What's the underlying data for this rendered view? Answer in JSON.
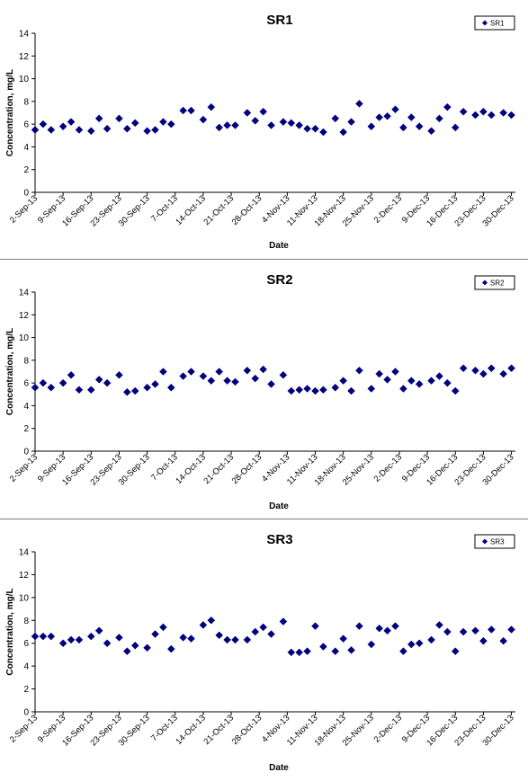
{
  "chart_data": [
    {
      "type": "scatter",
      "title": "SR1",
      "xlabel": "Date",
      "ylabel": "Concentration, mg/L",
      "ylim": [
        0,
        14
      ],
      "yticks": [
        "0",
        "2",
        "4",
        "6",
        "8",
        "10",
        "12",
        "14"
      ],
      "xticks": [
        "2-Sep-13",
        "9-Sep-13",
        "16-Sep-13",
        "23-Sep-13",
        "30-Sep-13",
        "7-Oct-13",
        "14-Oct-13",
        "21-Oct-13",
        "28-Oct-13",
        "4-Nov-13",
        "11-Nov-13",
        "18-Nov-13",
        "25-Nov-13",
        "2-Dec-13",
        "9-Dec-13",
        "16-Dec-13",
        "23-Dec-13",
        "30-Dec-13"
      ],
      "xlim": [
        "2013-09-02",
        "2013-12-31"
      ],
      "legend": "top-right",
      "grid": false,
      "color": "#00007f",
      "series": [
        {
          "name": "SR1",
          "x": [
            "2013-09-02",
            "2013-09-04",
            "2013-09-06",
            "2013-09-09",
            "2013-09-11",
            "2013-09-13",
            "2013-09-16",
            "2013-09-18",
            "2013-09-20",
            "2013-09-23",
            "2013-09-25",
            "2013-09-27",
            "2013-09-30",
            "2013-10-02",
            "2013-10-04",
            "2013-10-06",
            "2013-10-09",
            "2013-10-11",
            "2013-10-14",
            "2013-10-16",
            "2013-10-18",
            "2013-10-20",
            "2013-10-22",
            "2013-10-25",
            "2013-10-27",
            "2013-10-29",
            "2013-10-31",
            "2013-11-03",
            "2013-11-05",
            "2013-11-07",
            "2013-11-09",
            "2013-11-11",
            "2013-11-13",
            "2013-11-16",
            "2013-11-18",
            "2013-11-20",
            "2013-11-22",
            "2013-11-25",
            "2013-11-27",
            "2013-11-29",
            "2013-12-01",
            "2013-12-03",
            "2013-12-05",
            "2013-12-07",
            "2013-12-10",
            "2013-12-12",
            "2013-12-14",
            "2013-12-16",
            "2013-12-18",
            "2013-12-21",
            "2013-12-23",
            "2013-12-25",
            "2013-12-28",
            "2013-12-30"
          ],
          "y": [
            5.5,
            6.0,
            5.5,
            5.8,
            6.2,
            5.5,
            5.4,
            6.5,
            5.6,
            6.5,
            5.6,
            6.1,
            5.4,
            5.5,
            6.2,
            6.0,
            7.2,
            7.2,
            6.4,
            7.5,
            5.7,
            5.9,
            5.9,
            7.0,
            6.3,
            7.1,
            5.9,
            6.2,
            6.1,
            5.9,
            5.6,
            5.6,
            5.3,
            6.5,
            5.3,
            6.2,
            7.8,
            5.8,
            6.6,
            6.7,
            7.3,
            5.7,
            6.6,
            5.8,
            5.4,
            6.5,
            7.5,
            5.7,
            7.1,
            6.8,
            7.1,
            6.8,
            7.0,
            6.8
          ]
        }
      ]
    },
    {
      "type": "scatter",
      "title": "SR2",
      "xlabel": "Date",
      "ylabel": "Concentration, mg/L",
      "ylim": [
        0,
        14
      ],
      "yticks": [
        "0",
        "2",
        "4",
        "6",
        "8",
        "10",
        "12",
        "14"
      ],
      "xticks": [
        "2-Sep-13",
        "9-Sep-13",
        "16-Sep-13",
        "23-Sep-13",
        "30-Sep-13",
        "7-Oct-13",
        "14-Oct-13",
        "21-Oct-13",
        "28-Oct-13",
        "4-Nov-13",
        "11-Nov-13",
        "18-Nov-13",
        "25-Nov-13",
        "2-Dec-13",
        "9-Dec-13",
        "16-Dec-13",
        "23-Dec-13",
        "30-Dec-13"
      ],
      "xlim": [
        "2013-09-02",
        "2013-12-31"
      ],
      "legend": "top-right",
      "grid": false,
      "color": "#00007f",
      "series": [
        {
          "name": "SR2",
          "x": [
            "2013-09-02",
            "2013-09-04",
            "2013-09-06",
            "2013-09-09",
            "2013-09-11",
            "2013-09-13",
            "2013-09-16",
            "2013-09-18",
            "2013-09-20",
            "2013-09-23",
            "2013-09-25",
            "2013-09-27",
            "2013-09-30",
            "2013-10-02",
            "2013-10-04",
            "2013-10-06",
            "2013-10-09",
            "2013-10-11",
            "2013-10-14",
            "2013-10-16",
            "2013-10-18",
            "2013-10-20",
            "2013-10-22",
            "2013-10-25",
            "2013-10-27",
            "2013-10-29",
            "2013-10-31",
            "2013-11-03",
            "2013-11-05",
            "2013-11-07",
            "2013-11-09",
            "2013-11-11",
            "2013-11-13",
            "2013-11-16",
            "2013-11-18",
            "2013-11-20",
            "2013-11-22",
            "2013-11-25",
            "2013-11-27",
            "2013-11-29",
            "2013-12-01",
            "2013-12-03",
            "2013-12-05",
            "2013-12-07",
            "2013-12-10",
            "2013-12-12",
            "2013-12-14",
            "2013-12-16",
            "2013-12-18",
            "2013-12-21",
            "2013-12-23",
            "2013-12-25",
            "2013-12-28",
            "2013-12-30"
          ],
          "y": [
            5.6,
            6.0,
            5.6,
            6.0,
            6.7,
            5.4,
            5.4,
            6.3,
            6.0,
            6.7,
            5.2,
            5.3,
            5.6,
            5.9,
            7.0,
            5.6,
            6.6,
            7.0,
            6.6,
            6.2,
            7.0,
            6.2,
            6.1,
            7.1,
            6.4,
            7.2,
            5.9,
            6.7,
            5.3,
            5.4,
            5.5,
            5.3,
            5.4,
            5.6,
            6.2,
            5.3,
            7.1,
            5.5,
            6.8,
            6.3,
            7.0,
            5.5,
            6.2,
            5.9,
            6.2,
            6.6,
            6.0,
            5.3,
            7.3,
            7.1,
            6.8,
            7.3,
            6.8,
            7.3
          ]
        }
      ]
    },
    {
      "type": "scatter",
      "title": "SR3",
      "xlabel": "Date",
      "ylabel": "Concentration, mg/L",
      "ylim": [
        0,
        14
      ],
      "yticks": [
        "0",
        "2",
        "4",
        "6",
        "8",
        "10",
        "12",
        "14"
      ],
      "xticks": [
        "2-Sep-13",
        "9-Sep-13",
        "16-Sep-13",
        "23-Sep-13",
        "30-Sep-13",
        "7-Oct-13",
        "14-Oct-13",
        "21-Oct-13",
        "28-Oct-13",
        "4-Nov-13",
        "11-Nov-13",
        "18-Nov-13",
        "25-Nov-13",
        "2-Dec-13",
        "9-Dec-13",
        "16-Dec-13",
        "23-Dec-13",
        "30-Dec-13"
      ],
      "xlim": [
        "2013-09-02",
        "2013-12-31"
      ],
      "legend": "top-right",
      "grid": false,
      "color": "#00007f",
      "series": [
        {
          "name": "SR3",
          "x": [
            "2013-09-02",
            "2013-09-04",
            "2013-09-06",
            "2013-09-09",
            "2013-09-11",
            "2013-09-13",
            "2013-09-16",
            "2013-09-18",
            "2013-09-20",
            "2013-09-23",
            "2013-09-25",
            "2013-09-27",
            "2013-09-30",
            "2013-10-02",
            "2013-10-04",
            "2013-10-06",
            "2013-10-09",
            "2013-10-11",
            "2013-10-14",
            "2013-10-16",
            "2013-10-18",
            "2013-10-20",
            "2013-10-22",
            "2013-10-25",
            "2013-10-27",
            "2013-10-29",
            "2013-10-31",
            "2013-11-03",
            "2013-11-05",
            "2013-11-07",
            "2013-11-09",
            "2013-11-11",
            "2013-11-13",
            "2013-11-16",
            "2013-11-18",
            "2013-11-20",
            "2013-11-22",
            "2013-11-25",
            "2013-11-27",
            "2013-11-29",
            "2013-12-01",
            "2013-12-03",
            "2013-12-05",
            "2013-12-07",
            "2013-12-10",
            "2013-12-12",
            "2013-12-14",
            "2013-12-16",
            "2013-12-18",
            "2013-12-21",
            "2013-12-23",
            "2013-12-25",
            "2013-12-28",
            "2013-12-30"
          ],
          "y": [
            6.6,
            6.6,
            6.6,
            6.0,
            6.3,
            6.3,
            6.6,
            7.1,
            6.0,
            6.5,
            5.3,
            5.8,
            5.6,
            6.8,
            7.4,
            5.5,
            6.5,
            6.4,
            7.6,
            8.0,
            6.7,
            6.3,
            6.3,
            6.3,
            7.0,
            7.4,
            6.8,
            7.9,
            5.2,
            5.2,
            5.3,
            7.5,
            5.7,
            5.3,
            6.4,
            5.4,
            7.5,
            5.9,
            7.3,
            7.1,
            7.5,
            5.3,
            5.9,
            6.0,
            6.3,
            7.6,
            7.0,
            5.3,
            7.0,
            7.1,
            6.2,
            7.2,
            6.2,
            7.2
          ]
        }
      ]
    }
  ]
}
